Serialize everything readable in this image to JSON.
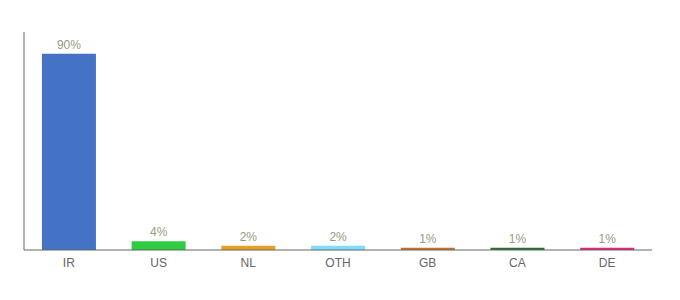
{
  "chart_data": {
    "type": "bar",
    "categories": [
      "IR",
      "US",
      "NL",
      "OTH",
      "GB",
      "CA",
      "DE"
    ],
    "values": [
      90,
      4,
      2,
      2,
      1,
      1,
      1
    ],
    "value_labels": [
      "90%",
      "4%",
      "2%",
      "2%",
      "1%",
      "1%",
      "1%"
    ],
    "data_labels": true,
    "colors": [
      "#4472C4",
      "#2ECC40",
      "#E8A020",
      "#7FDBFF",
      "#C87020",
      "#2E6B2E",
      "#E8207A"
    ],
    "ylim": [
      0,
      100
    ],
    "grid": false,
    "tick_labels": "x"
  }
}
